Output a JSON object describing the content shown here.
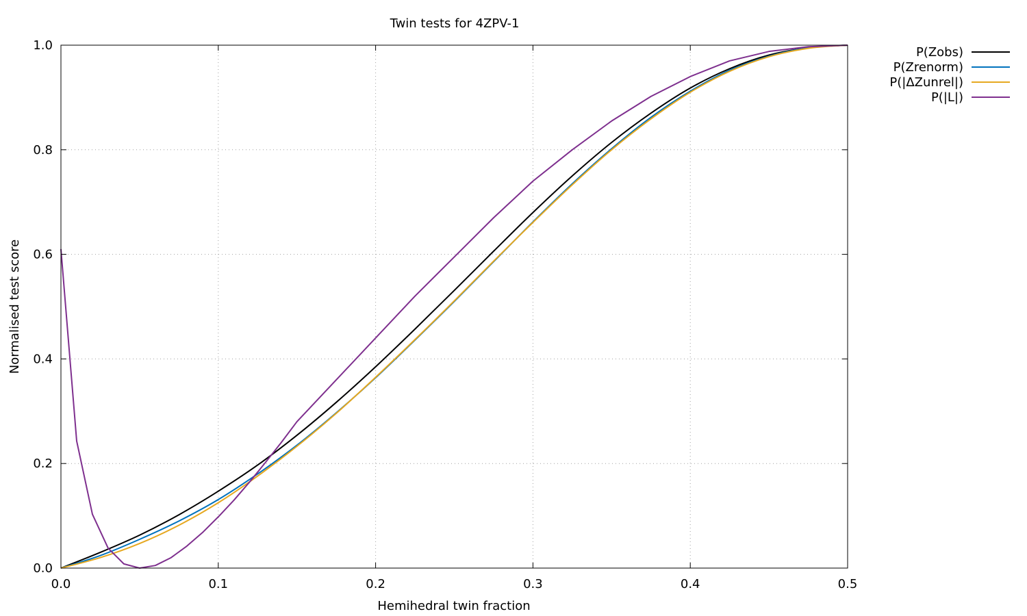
{
  "chart_data": {
    "type": "line",
    "title": "Twin tests for 4ZPV-1",
    "xlabel": "Hemihedral twin fraction",
    "ylabel": "Normalised test score",
    "xlim": [
      0.0,
      0.5
    ],
    "ylim": [
      0.0,
      1.0
    ],
    "x_ticks": [
      "0.0",
      "0.1",
      "0.2",
      "0.3",
      "0.4",
      "0.5"
    ],
    "y_ticks": [
      "0.0",
      "0.2",
      "0.4",
      "0.6",
      "0.8",
      "1.0"
    ],
    "grid": true,
    "legend_position": "outside-top-right",
    "series": [
      {
        "name": "P(Zobs)",
        "color": "#000000",
        "x": [
          0.0,
          0.025,
          0.05,
          0.075,
          0.1,
          0.125,
          0.15,
          0.175,
          0.2,
          0.225,
          0.25,
          0.275,
          0.3,
          0.325,
          0.35,
          0.375,
          0.4,
          0.425,
          0.45,
          0.475,
          0.5
        ],
        "y": [
          0.0,
          0.03,
          0.063,
          0.102,
          0.147,
          0.197,
          0.254,
          0.317,
          0.385,
          0.457,
          0.531,
          0.606,
          0.68,
          0.75,
          0.814,
          0.87,
          0.918,
          0.955,
          0.981,
          0.995,
          1.0
        ]
      },
      {
        "name": "P(Zrenorm)",
        "color": "#0072bd",
        "x": [
          0.0,
          0.025,
          0.05,
          0.075,
          0.1,
          0.125,
          0.15,
          0.175,
          0.2,
          0.225,
          0.25,
          0.275,
          0.3,
          0.325,
          0.35,
          0.375,
          0.4,
          0.425,
          0.45,
          0.475,
          0.5
        ],
        "y": [
          0.0,
          0.024,
          0.055,
          0.09,
          0.131,
          0.18,
          0.235,
          0.297,
          0.364,
          0.436,
          0.51,
          0.586,
          0.662,
          0.735,
          0.802,
          0.862,
          0.912,
          0.952,
          0.979,
          0.995,
          1.0
        ]
      },
      {
        "name": "P(|ΔZunrel|)",
        "color": "#e6a820",
        "x": [
          0.0,
          0.025,
          0.05,
          0.075,
          0.1,
          0.125,
          0.15,
          0.175,
          0.2,
          0.225,
          0.25,
          0.275,
          0.3,
          0.325,
          0.35,
          0.375,
          0.4,
          0.425,
          0.45,
          0.475,
          0.5
        ],
        "y": [
          0.0,
          0.02,
          0.047,
          0.082,
          0.125,
          0.176,
          0.233,
          0.296,
          0.365,
          0.437,
          0.511,
          0.587,
          0.661,
          0.733,
          0.8,
          0.859,
          0.91,
          0.95,
          0.978,
          0.994,
          1.0
        ]
      },
      {
        "name": "P(|L|)",
        "color": "#7e2f8e",
        "x": [
          0.0,
          0.01,
          0.02,
          0.03,
          0.04,
          0.05,
          0.06,
          0.07,
          0.08,
          0.09,
          0.1,
          0.11,
          0.12,
          0.13,
          0.14,
          0.15,
          0.175,
          0.2,
          0.225,
          0.25,
          0.275,
          0.3,
          0.325,
          0.35,
          0.375,
          0.4,
          0.425,
          0.45,
          0.475,
          0.5
        ],
        "y": [
          0.61,
          0.243,
          0.103,
          0.038,
          0.008,
          0.0,
          0.005,
          0.02,
          0.042,
          0.068,
          0.098,
          0.13,
          0.165,
          0.202,
          0.24,
          0.28,
          0.36,
          0.44,
          0.52,
          0.595,
          0.67,
          0.74,
          0.8,
          0.855,
          0.902,
          0.94,
          0.97,
          0.988,
          0.997,
          1.0
        ]
      }
    ]
  }
}
